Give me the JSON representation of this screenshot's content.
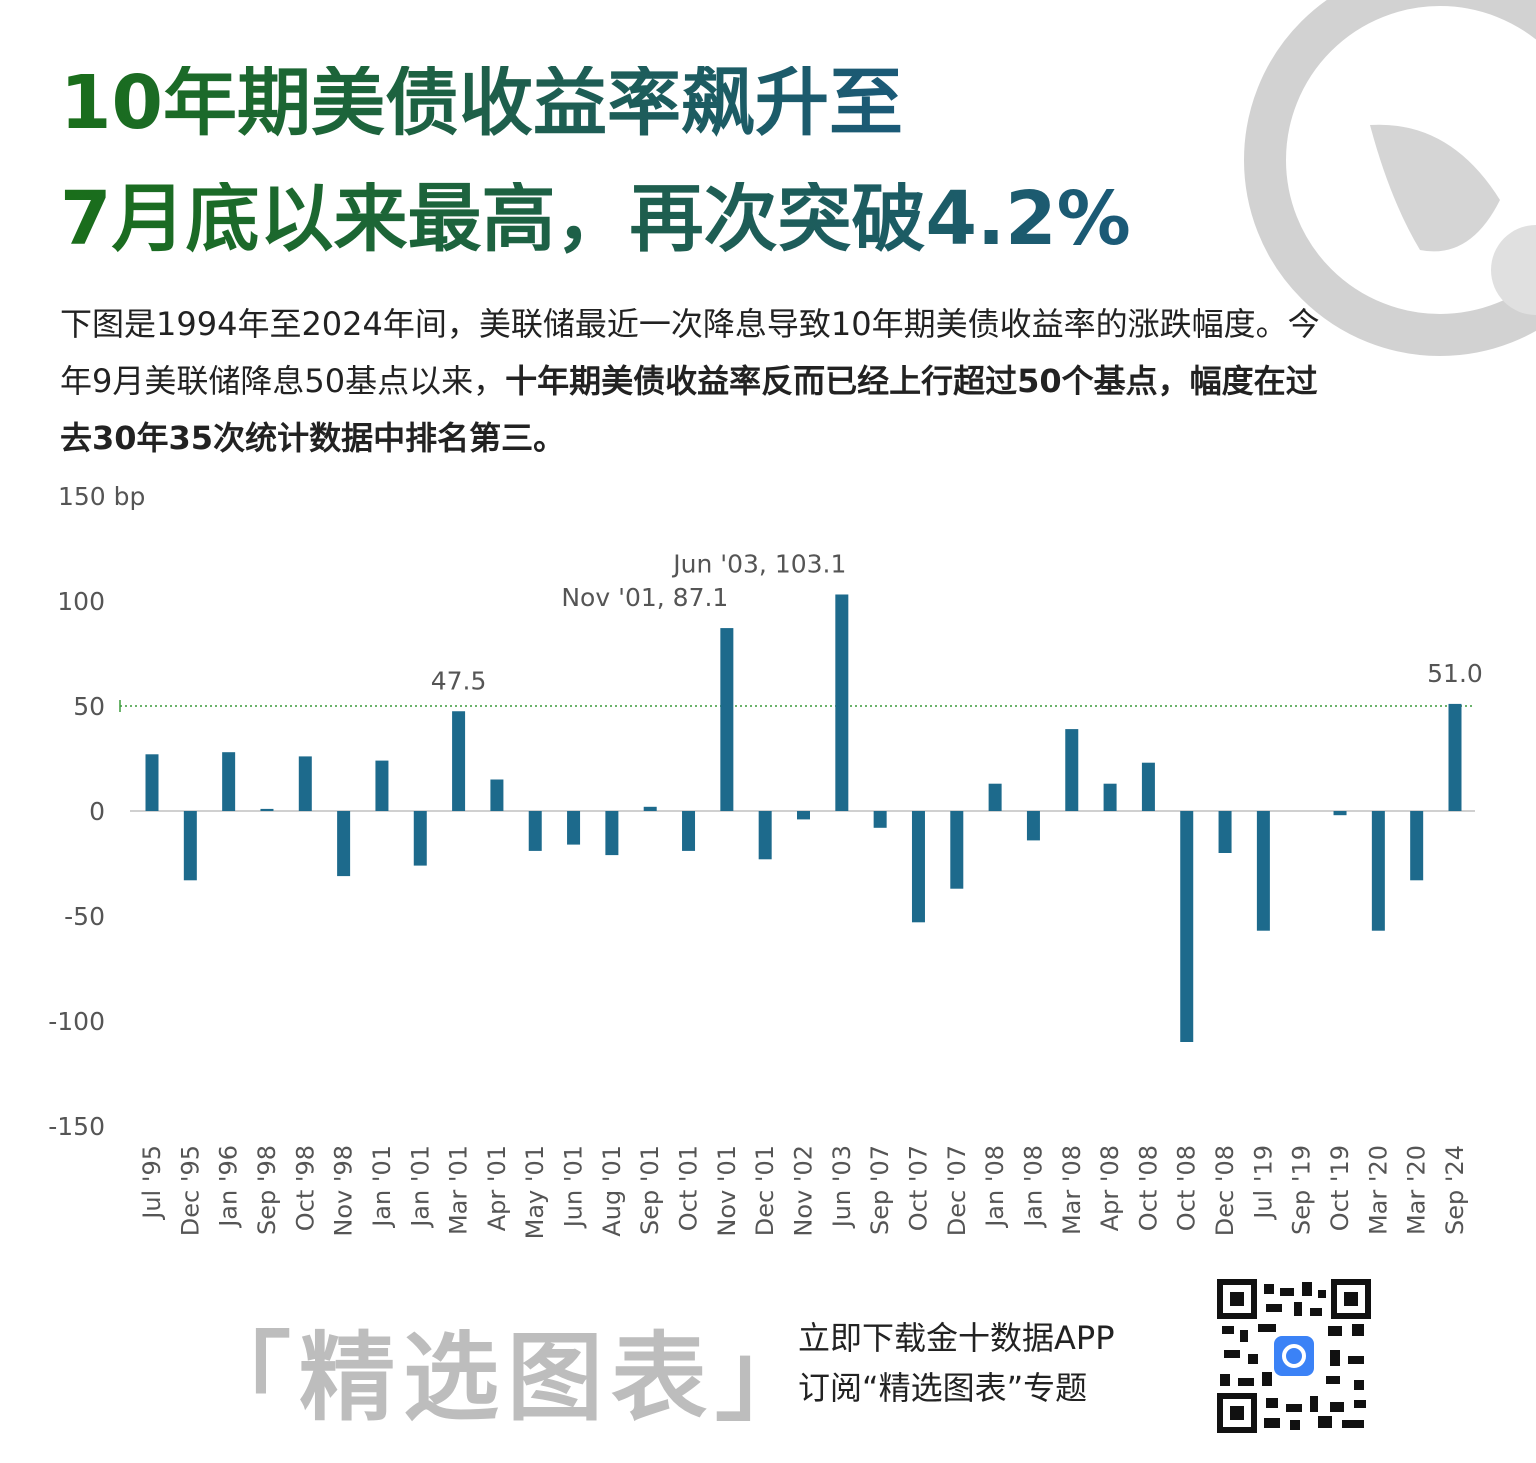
{
  "header": {
    "title_lines": [
      "10年期美债收益率飙升至",
      "7月底以来最高，再次突破4.2%"
    ],
    "description": "下图是1994年至2024年间，美联储最近一次降息导致10年期美债收益率的涨跌幅度。今年9月美联储降息50基点以来，",
    "description_bold": "十年期美债收益率反而已经上行超过50个基点，幅度在过去30年35次统计数据中排名第三。"
  },
  "chart_data": {
    "type": "bar",
    "categories": [
      "Jul '95",
      "Dec '95",
      "Jan '96",
      "Sep '98",
      "Oct '98",
      "Nov '98",
      "Jan '01",
      "Jan '01",
      "Mar '01",
      "Apr '01",
      "May '01",
      "Jun '01",
      "Aug '01",
      "Sep '01",
      "Oct '01",
      "Nov '01",
      "Dec '01",
      "Nov '02",
      "Jun '03",
      "Sep '07",
      "Oct '07",
      "Dec '07",
      "Jan '08",
      "Jan '08",
      "Mar '08",
      "Apr '08",
      "Oct '08",
      "Oct '08",
      "Dec '08",
      "Jul '19",
      "Sep '19",
      "Oct '19",
      "Mar '20",
      "Mar '20",
      "Sep '24"
    ],
    "values": [
      27,
      -33,
      28,
      1,
      26,
      -31,
      24,
      -26,
      47.5,
      15,
      -19,
      -16,
      -21,
      2,
      -19,
      87.1,
      -23,
      -4,
      103.1,
      -8,
      -53,
      -37,
      13,
      -14,
      39,
      13,
      23,
      -110,
      -20,
      -57,
      0,
      -2,
      -57,
      -33,
      51.0
    ],
    "value_labels": [
      null,
      null,
      null,
      null,
      null,
      null,
      null,
      null,
      "47.5",
      null,
      null,
      null,
      null,
      null,
      null,
      "Nov '01, 87.1",
      null,
      null,
      "Jun '03, 103.1",
      null,
      null,
      null,
      null,
      null,
      null,
      null,
      null,
      null,
      null,
      null,
      null,
      null,
      null,
      null,
      "51.0"
    ],
    "color": "#1d6a8c",
    "ylim": [
      -150,
      150
    ],
    "yticks": [
      -150,
      -100,
      -50,
      0,
      50,
      100,
      {
        "value": 150,
        "label": "150 bp"
      }
    ],
    "reference_line": {
      "value": 50,
      "color": "#3a9a3a"
    }
  },
  "footer": {
    "brand": "「精选图表」",
    "cta_lines": [
      "立即下载金十数据APP",
      "订阅“精选图表”专题"
    ]
  }
}
